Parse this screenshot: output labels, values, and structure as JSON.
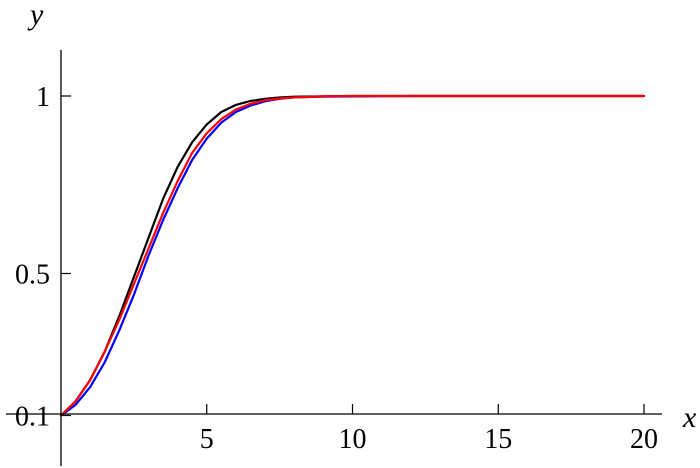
{
  "chart_data": {
    "type": "line",
    "title": "",
    "xlabel": "x",
    "ylabel": "y",
    "xlim": [
      0,
      20
    ],
    "ylim": [
      0,
      1.15
    ],
    "xticks": [
      5,
      10,
      15,
      20
    ],
    "xtick_labels": [
      "5",
      "10",
      "15",
      "20"
    ],
    "yticks": [
      0.1,
      0.5,
      1
    ],
    "ytick_labels": [
      "0.1",
      "0.5",
      "1"
    ],
    "grid": false,
    "series": [
      {
        "color": "#000000",
        "x": [
          0,
          0.5,
          1,
          1.5,
          2,
          2.5,
          3,
          3.5,
          4,
          4.5,
          5,
          5.5,
          6,
          6.5,
          7,
          7.5,
          8,
          9,
          10,
          12,
          15,
          20
        ],
        "y": [
          0.1,
          0.14,
          0.2,
          0.28,
          0.38,
          0.49,
          0.6,
          0.71,
          0.8,
          0.87,
          0.92,
          0.955,
          0.975,
          0.986,
          0.992,
          0.996,
          0.998,
          0.999,
          1.0,
          1.0,
          1.0,
          1.0
        ]
      },
      {
        "color": "#0000ff",
        "x": [
          0,
          0.5,
          1,
          1.5,
          2,
          2.5,
          3,
          3.5,
          4,
          4.5,
          5,
          5.5,
          6,
          6.5,
          7,
          7.5,
          8,
          9,
          10,
          12,
          15,
          20
        ],
        "y": [
          0.1,
          0.13,
          0.18,
          0.25,
          0.34,
          0.44,
          0.55,
          0.65,
          0.74,
          0.82,
          0.88,
          0.925,
          0.955,
          0.973,
          0.985,
          0.992,
          0.996,
          0.998,
          0.999,
          1.0,
          1.0,
          1.0
        ]
      },
      {
        "color": "#ff0000",
        "x": [
          0,
          0.5,
          1,
          1.5,
          2,
          2.5,
          3,
          3.5,
          4,
          4.5,
          5,
          5.5,
          6,
          6.5,
          7,
          7.5,
          8,
          9,
          10,
          12,
          15,
          20
        ],
        "y": [
          0.1,
          0.14,
          0.2,
          0.28,
          0.37,
          0.47,
          0.57,
          0.67,
          0.76,
          0.84,
          0.895,
          0.935,
          0.962,
          0.978,
          0.988,
          0.993,
          0.996,
          0.999,
          1.0,
          1.0,
          1.0,
          1.0
        ]
      }
    ]
  }
}
